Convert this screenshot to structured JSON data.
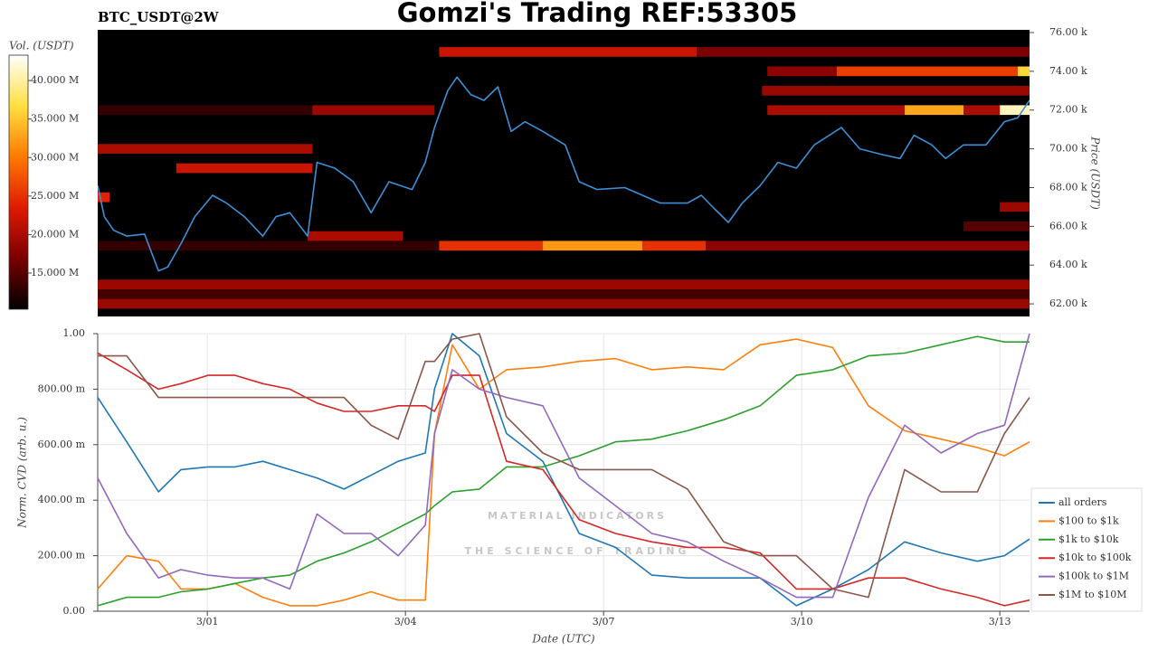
{
  "chart_data": [
    {
      "type": "heatmap",
      "title": "Gomzi's Trading REF:53305",
      "subtitle": "BTC_USDT@2W",
      "ylabel": "Price (USDT)",
      "color": "#3d8fd6",
      "xlim": [
        -1.66,
        12.45
      ],
      "ylim": [
        61350,
        76140
      ],
      "yticks": [
        {
          "value": 62000,
          "label": "62.00 k"
        },
        {
          "value": 64000,
          "label": "64.00 k"
        },
        {
          "value": 66000,
          "label": "66.00 k"
        },
        {
          "value": 68000,
          "label": "68.00 k"
        },
        {
          "value": 70000,
          "label": "70.00 k"
        },
        {
          "value": 72000,
          "label": "72.00 k"
        },
        {
          "value": 74000,
          "label": "74.00 k"
        },
        {
          "value": 76000,
          "label": "76.00 k"
        }
      ],
      "x": [
        -1.66,
        -1.56,
        -1.42,
        -1.22,
        -0.95,
        -0.74,
        -0.6,
        -0.4,
        -0.19,
        0.08,
        0.29,
        0.56,
        0.84,
        1.04,
        1.25,
        1.52,
        1.66,
        1.93,
        2.21,
        2.48,
        2.75,
        3.1,
        3.3,
        3.44,
        3.64,
        3.78,
        3.99,
        4.19,
        4.4,
        4.6,
        4.81,
        5.08,
        5.42,
        5.63,
        5.9,
        6.32,
        6.59,
        6.86,
        7.27,
        7.48,
        7.68,
        7.89,
        8.1,
        8.37,
        8.64,
        8.92,
        9.19,
        9.6,
        9.88,
        10.22,
        10.49,
        10.7,
        10.97,
        11.18,
        11.45,
        11.79,
        12.07,
        12.27,
        12.45
      ],
      "values": [
        68100,
        66500,
        65800,
        65500,
        65600,
        63700,
        63900,
        65100,
        66500,
        67600,
        67200,
        66500,
        65500,
        66500,
        66700,
        65500,
        69300,
        69000,
        68300,
        66700,
        68300,
        67900,
        69300,
        71100,
        73000,
        73700,
        72800,
        72500,
        73200,
        70900,
        71400,
        70900,
        70200,
        68300,
        67900,
        68000,
        67600,
        67200,
        67200,
        67600,
        66900,
        66200,
        67200,
        68100,
        69300,
        69000,
        70200,
        71100,
        70000,
        69700,
        69500,
        70700,
        70200,
        69500,
        70200,
        70200,
        71400,
        71600,
        72500
      ],
      "heatmap": {
        "price_bin": 500,
        "clabel": "Vol. (USDT)",
        "clim": [
          10300000,
          43300000
        ],
        "colorscale": [
          "#000000",
          "#7a0000",
          "#e01a00",
          "#ff7a00",
          "#ffe040",
          "#ffffff"
        ],
        "cticks": [
          {
            "value": 15000000,
            "label": "15.000 M"
          },
          {
            "value": 20000000,
            "label": "20.000 M"
          },
          {
            "value": 25000000,
            "label": "25.000 M"
          },
          {
            "value": 30000000,
            "label": "30.000 M"
          },
          {
            "value": 35000000,
            "label": "35.000 M"
          },
          {
            "value": 40000000,
            "label": "40.000 M"
          }
        ],
        "cells": [
          {
            "price": 75000,
            "x0": 3.51,
            "x1": 7.41,
            "volume": 22000000
          },
          {
            "price": 75000,
            "x0": 7.41,
            "x1": 12.45,
            "volume": 17000000
          },
          {
            "price": 74000,
            "x0": 8.48,
            "x1": 9.53,
            "volume": 18000000
          },
          {
            "price": 74000,
            "x0": 9.53,
            "x1": 12.27,
            "volume": 26000000
          },
          {
            "price": 74000,
            "x0": 12.27,
            "x1": 12.45,
            "volume": 36000000
          },
          {
            "price": 73000,
            "x0": 8.4,
            "x1": 12.45,
            "volume": 19000000
          },
          {
            "price": 72000,
            "x0": -1.66,
            "x1": 1.59,
            "volume": 13000000
          },
          {
            "price": 72000,
            "x0": 1.59,
            "x1": 3.44,
            "volume": 19000000
          },
          {
            "price": 72000,
            "x0": 8.48,
            "x1": 10.56,
            "volume": 20000000
          },
          {
            "price": 72000,
            "x0": 10.56,
            "x1": 11.45,
            "volume": 33000000
          },
          {
            "price": 72000,
            "x0": 11.45,
            "x1": 12.0,
            "volume": 20000000
          },
          {
            "price": 72000,
            "x0": 12.0,
            "x1": 12.45,
            "volume": 41000000
          },
          {
            "price": 70000,
            "x0": -1.66,
            "x1": 1.59,
            "volume": 20000000
          },
          {
            "price": 69000,
            "x0": -0.47,
            "x1": 1.59,
            "volume": 22000000
          },
          {
            "price": 67500,
            "x0": -1.66,
            "x1": -1.48,
            "volume": 24000000
          },
          {
            "price": 67000,
            "x0": 12.0,
            "x1": 12.45,
            "volume": 19000000
          },
          {
            "price": 66000,
            "x0": 11.45,
            "x1": 12.45,
            "volume": 15000000
          },
          {
            "price": 65500,
            "x0": 1.52,
            "x1": 2.96,
            "volume": 20000000
          },
          {
            "price": 65000,
            "x0": -1.66,
            "x1": 3.51,
            "volume": 13000000
          },
          {
            "price": 65000,
            "x0": 3.51,
            "x1": 5.08,
            "volume": 25000000
          },
          {
            "price": 65000,
            "x0": 5.08,
            "x1": 6.59,
            "volume": 32000000
          },
          {
            "price": 65000,
            "x0": 6.59,
            "x1": 7.55,
            "volume": 25000000
          },
          {
            "price": 65000,
            "x0": 7.55,
            "x1": 12.45,
            "volume": 18000000
          },
          {
            "price": 63000,
            "x0": -1.66,
            "x1": 12.45,
            "volume": 19000000
          },
          {
            "price": 62500,
            "x0": -1.66,
            "x1": 12.45,
            "volume": 14000000
          },
          {
            "price": 62000,
            "x0": -1.66,
            "x1": 12.45,
            "volume": 19000000
          }
        ]
      }
    },
    {
      "type": "line",
      "xlabel": "Date (UTC)",
      "ylabel": "Norm. CVD (arb. u.)",
      "grid": true,
      "annotations": [
        "MATERIAL INDICATORS",
        "THE SCIENCE OF TRADING"
      ],
      "xlim": [
        -1.66,
        12.45
      ],
      "ylim": [
        0,
        1
      ],
      "xticks": [
        {
          "value": 0,
          "label": "3/01"
        },
        {
          "value": 3,
          "label": "3/04"
        },
        {
          "value": 6,
          "label": "3/07"
        },
        {
          "value": 9,
          "label": "3/10"
        },
        {
          "value": 12,
          "label": "3/13"
        }
      ],
      "yticks": [
        {
          "value": 0,
          "label": "0.00"
        },
        {
          "value": 0.2,
          "label": "200.00 m"
        },
        {
          "value": 0.4,
          "label": "400.00 m"
        },
        {
          "value": 0.6,
          "label": "600.00 m"
        },
        {
          "value": 0.8,
          "label": "800.00 m"
        },
        {
          "value": 1,
          "label": "1.00"
        }
      ],
      "x": [
        -1.66,
        -1.22,
        -0.74,
        -0.4,
        0.01,
        0.42,
        0.84,
        1.25,
        1.66,
        2.07,
        2.48,
        2.89,
        3.3,
        3.44,
        3.71,
        4.12,
        4.53,
        5.08,
        5.63,
        6.18,
        6.73,
        7.27,
        7.82,
        8.37,
        8.92,
        9.47,
        10.01,
        10.56,
        11.11,
        11.66,
        12.07,
        12.45
      ],
      "series": [
        {
          "name": "all orders",
          "color": "#1f77b4",
          "values": [
            0.77,
            0.61,
            0.43,
            0.51,
            0.52,
            0.52,
            0.54,
            0.51,
            0.48,
            0.44,
            0.49,
            0.54,
            0.57,
            0.8,
            1.0,
            0.92,
            0.64,
            0.54,
            0.28,
            0.23,
            0.13,
            0.12,
            0.12,
            0.12,
            0.02,
            0.08,
            0.15,
            0.25,
            0.21,
            0.18,
            0.2,
            0.26
          ]
        },
        {
          "name": "$100 to $1k",
          "color": "#ff7f0e",
          "values": [
            0.08,
            0.2,
            0.18,
            0.08,
            0.08,
            0.1,
            0.05,
            0.02,
            0.02,
            0.04,
            0.07,
            0.04,
            0.04,
            0.64,
            0.96,
            0.8,
            0.87,
            0.88,
            0.9,
            0.91,
            0.87,
            0.88,
            0.87,
            0.96,
            0.98,
            0.95,
            0.74,
            0.65,
            0.62,
            0.59,
            0.56,
            0.61
          ]
        },
        {
          "name": "$1k to $10k",
          "color": "#2ca02c",
          "values": [
            0.02,
            0.05,
            0.05,
            0.07,
            0.08,
            0.1,
            0.12,
            0.13,
            0.18,
            0.21,
            0.25,
            0.3,
            0.35,
            0.38,
            0.43,
            0.44,
            0.52,
            0.52,
            0.56,
            0.61,
            0.62,
            0.65,
            0.69,
            0.74,
            0.85,
            0.87,
            0.92,
            0.93,
            0.96,
            0.99,
            0.97,
            0.97
          ]
        },
        {
          "name": "$10k to $100k",
          "color": "#d62728",
          "values": [
            0.93,
            0.87,
            0.8,
            0.82,
            0.85,
            0.85,
            0.82,
            0.8,
            0.75,
            0.72,
            0.72,
            0.74,
            0.74,
            0.72,
            0.85,
            0.85,
            0.54,
            0.51,
            0.33,
            0.28,
            0.25,
            0.23,
            0.23,
            0.21,
            0.08,
            0.08,
            0.12,
            0.12,
            0.08,
            0.05,
            0.02,
            0.04
          ]
        },
        {
          "name": "$100k to $1M",
          "color": "#9467bd",
          "values": [
            0.48,
            0.28,
            0.12,
            0.15,
            0.13,
            0.12,
            0.12,
            0.08,
            0.35,
            0.28,
            0.28,
            0.2,
            0.31,
            0.64,
            0.87,
            0.8,
            0.77,
            0.74,
            0.48,
            0.38,
            0.28,
            0.25,
            0.18,
            0.12,
            0.05,
            0.05,
            0.41,
            0.67,
            0.57,
            0.64,
            0.67,
            1.0
          ]
        },
        {
          "name": "$1M to $10M",
          "color": "#8c564b",
          "values": [
            0.92,
            0.92,
            0.77,
            0.77,
            0.77,
            0.77,
            0.77,
            0.77,
            0.77,
            0.77,
            0.67,
            0.62,
            0.9,
            0.9,
            0.98,
            1.0,
            0.7,
            0.57,
            0.51,
            0.51,
            0.51,
            0.44,
            0.25,
            0.2,
            0.2,
            0.08,
            0.05,
            0.51,
            0.43,
            0.43,
            0.64,
            0.77
          ]
        }
      ]
    }
  ]
}
